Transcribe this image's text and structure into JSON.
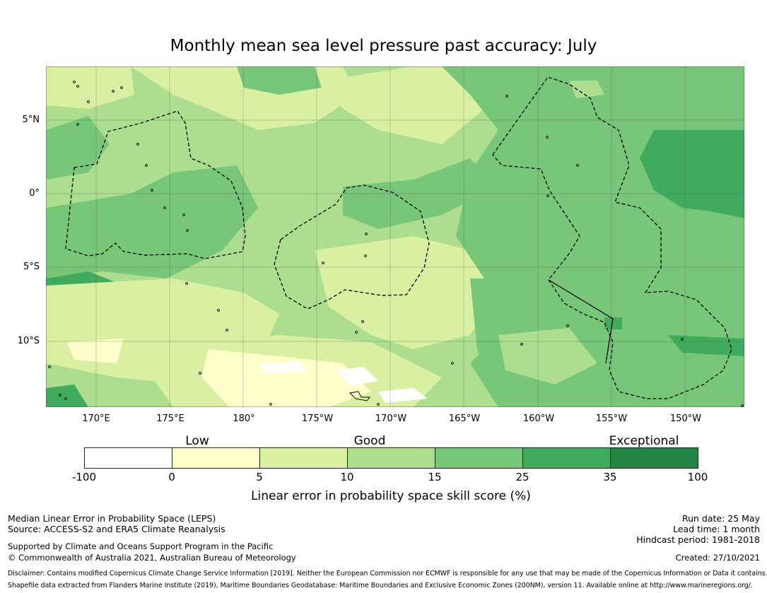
{
  "title": "Monthly mean sea level pressure past accuracy: July",
  "map": {
    "lat_labels": [
      "5°N",
      "0°",
      "5°S",
      "10°S"
    ],
    "lon_labels": [
      "170°E",
      "175°E",
      "180°",
      "175°W",
      "170°W",
      "165°W",
      "160°W",
      "155°W",
      "150°W"
    ],
    "palette": {
      "below_0": "#ffffff",
      "0_5": "#ffffcc",
      "5_10": "#d9f0a3",
      "10_15": "#addd8e",
      "15_25": "#78c679",
      "25_35": "#41ab5d",
      "35_100": "#238443"
    }
  },
  "colorbar": {
    "groups": [
      "Low",
      "Good",
      "Exceptional"
    ],
    "ticks": [
      "-100",
      "0",
      "5",
      "10",
      "15",
      "25",
      "35",
      "100"
    ],
    "colors": [
      "#ffffff",
      "#ffffcc",
      "#d9f0a3",
      "#addd8e",
      "#78c679",
      "#41ab5d",
      "#238443"
    ],
    "label": "Linear error in probability space skill score (%)"
  },
  "footer": {
    "left_line1": "Median Linear Error in Probability Space (LEPS)",
    "left_line2": "Source: ACCESS-S2 and ERA5 Climate Reanalysis",
    "left_line3": "Supported by Climate and Oceans Support Program in the Pacific",
    "left_line4": "© Commonwealth of Australia 2021, Australian Bureau of Meteorology",
    "run_date": "Run date: 25 May",
    "lead_time": "Lead time: 1 month",
    "hindcast": "Hindcast period: 1981-2018",
    "created": "Created: 27/10/2021",
    "disclaimer1": "Disclaimer: Contains modified Copernicus Climate Change Service Information [2019]. Neither the European Commission nor ECMWF is responsible for any use that may be made of the Copernicus Information or Data it contains.",
    "disclaimer2": "Shapefile data extracted from Flanders Marine Institute (2019), Maritime Boundaries Geodatabase: Maritime Boundaries and Exclusive Economic Zones (200NM), version 11. Available online at http://www.marineregions.org/."
  }
}
